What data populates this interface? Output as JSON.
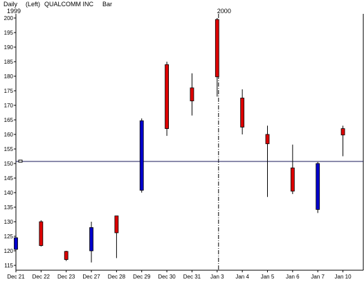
{
  "header": {
    "period": "Daily",
    "axis_side": "(Left)",
    "symbol_name": "QUALCOMM INC",
    "bar_type": "Bar"
  },
  "chart_data": {
    "type": "candlestick",
    "ylim": [
      115,
      200
    ],
    "yticks": [
      115,
      120,
      125,
      130,
      135,
      140,
      145,
      150,
      155,
      160,
      165,
      170,
      175,
      180,
      185,
      190,
      195,
      200
    ],
    "year_labels": [
      {
        "label": "1999",
        "at_category": "Dec 21"
      },
      {
        "label": "2000",
        "at_category": "Jan 3"
      }
    ],
    "year_divider_at": "Jan 3",
    "reference_line": 150.7,
    "up_color": "#0000cc",
    "down_color": "#dd0000",
    "categories": [
      "Dec 21",
      "Dec 22",
      "Dec 23",
      "Dec 27",
      "Dec 28",
      "Dec 29",
      "Dec 30",
      "Dec 31",
      "Jan 3",
      "Jan 4",
      "Jan 5",
      "Jan 6",
      "Jan 7",
      "Jan 10"
    ],
    "candles": [
      {
        "date": "Dec 21",
        "open": 120.5,
        "high": 124.5,
        "low": 120.0,
        "close": 124.5
      },
      {
        "date": "Dec 22",
        "open": 130.0,
        "high": 130.5,
        "low": 121.5,
        "close": 121.8
      },
      {
        "date": "Dec 23",
        "open": 119.8,
        "high": 120.0,
        "low": 116.5,
        "close": 117.0
      },
      {
        "date": "Dec 27",
        "open": 120.0,
        "high": 130.0,
        "low": 116.0,
        "close": 128.0
      },
      {
        "date": "Dec 28",
        "open": 132.0,
        "high": 132.0,
        "low": 117.5,
        "close": 126.2
      },
      {
        "date": "Dec 29",
        "open": 140.8,
        "high": 165.5,
        "low": 140.0,
        "close": 164.7
      },
      {
        "date": "Dec 30",
        "open": 184.0,
        "high": 185.0,
        "low": 159.5,
        "close": 162.0
      },
      {
        "date": "Dec 31",
        "open": 176.0,
        "high": 181.0,
        "low": 166.5,
        "close": 171.5
      },
      {
        "date": "Jan 3",
        "open": 199.5,
        "high": 200.0,
        "low": 173.0,
        "close": 179.8
      },
      {
        "date": "Jan 4",
        "open": 172.5,
        "high": 175.5,
        "low": 160.0,
        "close": 162.5
      },
      {
        "date": "Jan 5",
        "open": 160.0,
        "high": 163.0,
        "low": 138.5,
        "close": 156.8
      },
      {
        "date": "Jan 6",
        "open": 148.5,
        "high": 156.5,
        "low": 139.5,
        "close": 140.5
      },
      {
        "date": "Jan 7",
        "open": 134.2,
        "high": 150.5,
        "low": 133.0,
        "close": 150.0
      },
      {
        "date": "Jan 10",
        "open": 162.0,
        "high": 163.0,
        "low": 152.5,
        "close": 159.8
      }
    ]
  }
}
